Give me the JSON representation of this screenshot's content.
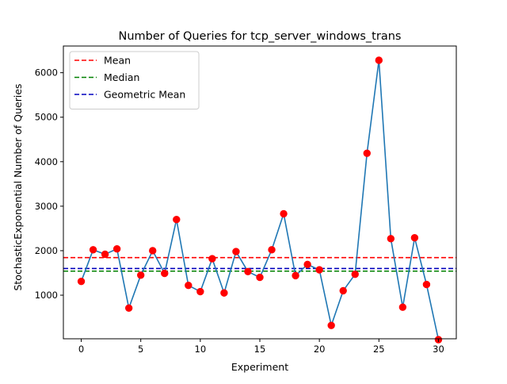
{
  "chart_data": {
    "type": "line",
    "title": "Number of Queries for tcp_server_windows_trans",
    "xlabel": "Experiment",
    "ylabel": "StochasticExponential Number of Queries",
    "xlim": [
      -1.5,
      31.5
    ],
    "ylim": [
      20,
      6600
    ],
    "xticks": [
      0,
      5,
      10,
      15,
      20,
      25,
      30
    ],
    "yticks": [
      1000,
      2000,
      3000,
      4000,
      5000,
      6000
    ],
    "legend_position": "top-left",
    "series": [
      {
        "x": [
          0,
          1,
          2,
          3,
          4,
          5,
          6,
          7,
          8,
          9,
          10,
          11,
          12,
          13,
          14,
          15,
          16,
          17,
          18,
          19,
          20,
          21,
          22,
          23,
          24,
          25,
          26,
          27,
          28,
          29,
          30
        ],
        "y": [
          1310,
          2020,
          1920,
          2040,
          710,
          1450,
          2000,
          1490,
          2700,
          1220,
          1080,
          1820,
          1050,
          1980,
          1530,
          1400,
          2020,
          2830,
          1440,
          1690,
          1570,
          320,
          1100,
          1470,
          4190,
          6280,
          2270,
          730,
          2290,
          1240,
          0
        ],
        "line_color": "#1f77b4",
        "marker_color": "#ff0000"
      }
    ],
    "hlines": [
      {
        "name": "Mean",
        "value": 1845,
        "color": "#ff0000"
      },
      {
        "name": "Median",
        "value": 1540,
        "color": "#008000"
      },
      {
        "name": "Geometric Mean",
        "value": 1600,
        "color": "#0000bf"
      }
    ]
  }
}
